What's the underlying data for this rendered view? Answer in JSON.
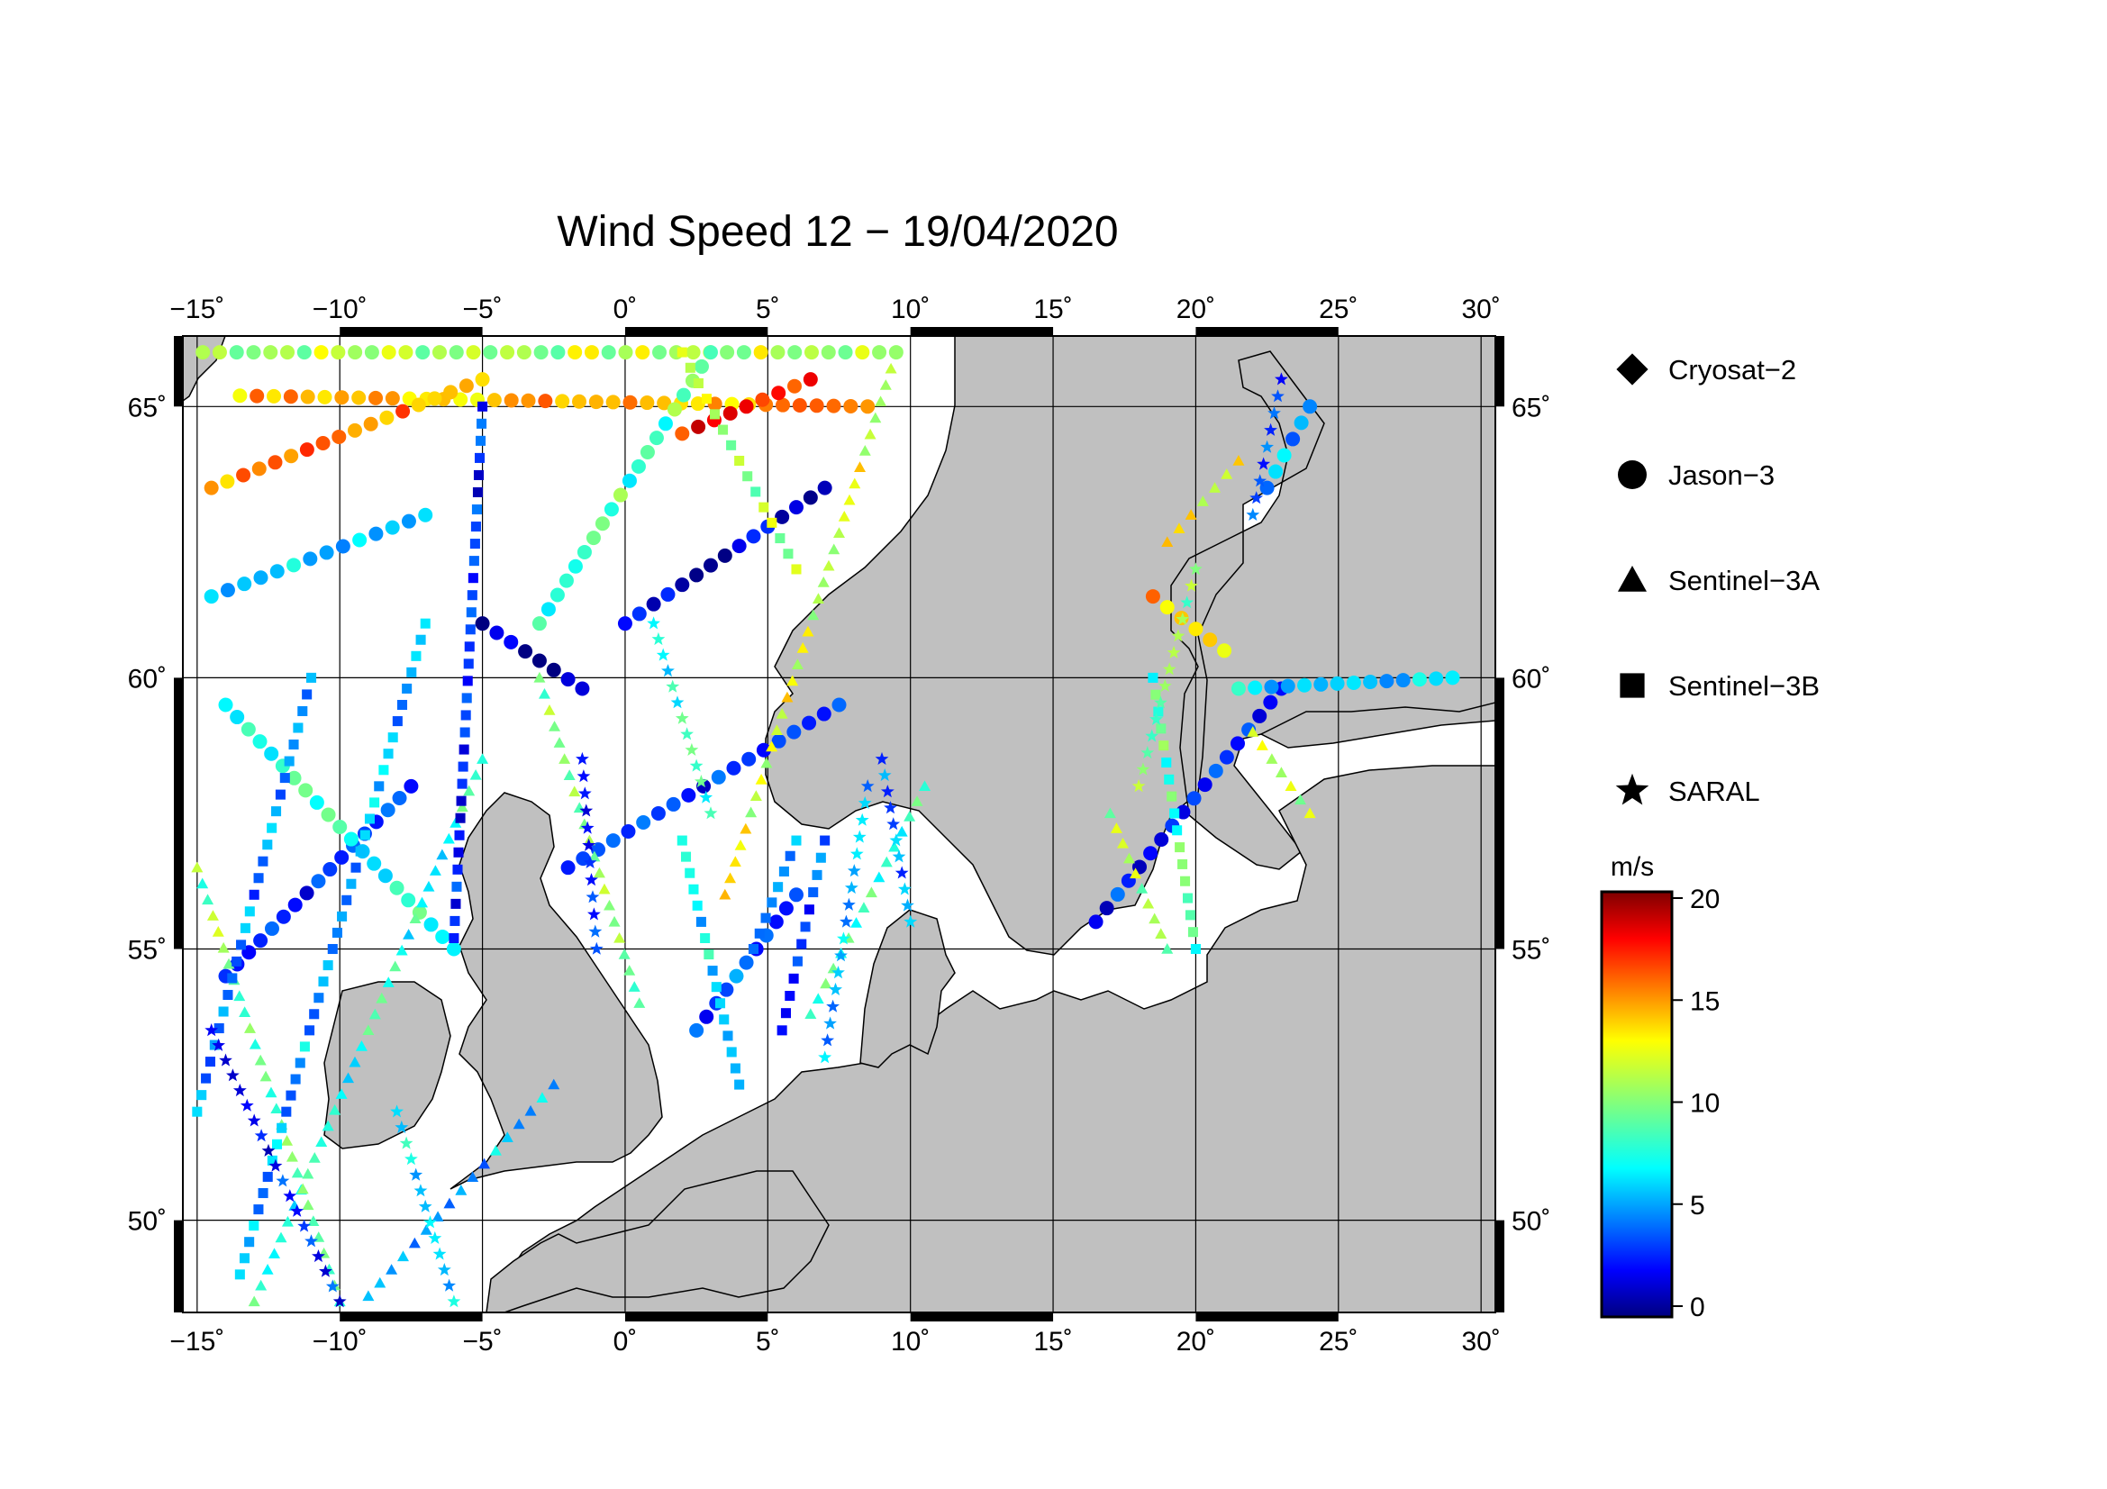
{
  "title": "Wind Speed 12 − 19/04/2020",
  "map": {
    "lon_range": [
      -15.5,
      30.5
    ],
    "lat_range": [
      48.3,
      66.3
    ],
    "lon_ticks": [
      "−15˚",
      "−10˚",
      "−5˚",
      "0˚",
      "5˚",
      "10˚",
      "15˚",
      "20˚",
      "25˚",
      "30˚"
    ],
    "lat_ticks": [
      "50˚",
      "55˚",
      "60˚",
      "65˚"
    ],
    "land_color": "#c0c0c0",
    "sea_color": "#ffffff"
  },
  "legend": {
    "items": [
      {
        "label": "Cryosat−2",
        "symbol": "diamond"
      },
      {
        "label": "Jason−3",
        "symbol": "circle"
      },
      {
        "label": "Sentinel−3A",
        "symbol": "triangle"
      },
      {
        "label": "Sentinel−3B",
        "symbol": "square"
      },
      {
        "label": "SARAL",
        "symbol": "star"
      }
    ]
  },
  "colorbar": {
    "unit": "m/s",
    "min": 0,
    "max": 20,
    "tick_labels": [
      "20",
      "15",
      "10",
      "5",
      "0"
    ],
    "colormap": "jet"
  },
  "tracks": [
    {
      "mission": "Jason−3",
      "lon0": -14.8,
      "lat0": 66.0,
      "lon1": 9.5,
      "lat1": 66.0,
      "speed": 11
    },
    {
      "mission": "Jason−3",
      "lon0": -13.5,
      "lat0": 65.2,
      "lon1": 8.5,
      "lat1": 65.0,
      "speed": 14
    },
    {
      "mission": "Jason−3",
      "lon0": -3.0,
      "lat0": 61.0,
      "lon1": 3.0,
      "lat1": 66.0,
      "speed": 9
    },
    {
      "mission": "Jason−3",
      "lon0": -5.0,
      "lat0": 61.0,
      "lon1": -1.5,
      "lat1": 59.8,
      "speed": 1
    },
    {
      "mission": "Jason−3",
      "lon0": 0.0,
      "lat0": 61.0,
      "lon1": 7.0,
      "lat1": 63.5,
      "speed": 2
    },
    {
      "mission": "Jason−3",
      "lon0": -14.5,
      "lat0": 61.5,
      "lon1": -7.0,
      "lat1": 63.0,
      "speed": 7
    },
    {
      "mission": "Jason−3",
      "lon0": -14.5,
      "lat0": 63.5,
      "lon1": -5.0,
      "lat1": 65.5,
      "speed": 15
    },
    {
      "mission": "Jason−3",
      "lon0": -14.0,
      "lat0": 54.5,
      "lon1": -7.5,
      "lat1": 58.0,
      "speed": 3
    },
    {
      "mission": "Jason−3",
      "lon0": -2.0,
      "lat0": 56.5,
      "lon1": 7.5,
      "lat1": 59.5,
      "speed": 3
    },
    {
      "mission": "Jason−3",
      "lon0": 2.5,
      "lat0": 53.5,
      "lon1": 6.0,
      "lat1": 56.0,
      "speed": 4
    },
    {
      "mission": "Jason−3",
      "lon0": 16.5,
      "lat0": 55.5,
      "lon1": 23.0,
      "lat1": 59.8,
      "speed": 3
    },
    {
      "mission": "Jason−3",
      "lon0": 21.5,
      "lat0": 59.8,
      "lon1": 29.0,
      "lat1": 60.0,
      "speed": 7
    },
    {
      "mission": "Jason−3",
      "lon0": 18.5,
      "lat0": 61.5,
      "lon1": 21.0,
      "lat1": 60.5,
      "speed": 14
    },
    {
      "mission": "Jason−3",
      "lon0": 22.5,
      "lat0": 63.5,
      "lon1": 24.0,
      "lat1": 65.0,
      "speed": 6
    },
    {
      "mission": "Jason−3",
      "lon0": -14.0,
      "lat0": 59.5,
      "lon1": -6.0,
      "lat1": 55.0,
      "speed": 8
    },
    {
      "mission": "Jason−3",
      "lon0": 2.0,
      "lat0": 64.5,
      "lon1": 6.5,
      "lat1": 65.5,
      "speed": 17
    },
    {
      "mission": "Sentinel−3A",
      "lon0": -13.0,
      "lat0": 48.5,
      "lon1": -5.0,
      "lat1": 58.5,
      "speed": 8
    },
    {
      "mission": "Sentinel−3A",
      "lon0": -10.0,
      "lat0": 48.5,
      "lon1": -15.0,
      "lat1": 56.5,
      "speed": 10
    },
    {
      "mission": "Sentinel−3A",
      "lon0": 3.5,
      "lat0": 56.0,
      "lon1": 9.5,
      "lat1": 66.0,
      "speed": 12
    },
    {
      "mission": "Sentinel−3A",
      "lon0": 0.5,
      "lat0": 54.0,
      "lon1": -3.0,
      "lat1": 60.0,
      "speed": 10
    },
    {
      "mission": "Sentinel−3A",
      "lon0": 6.5,
      "lat0": 53.8,
      "lon1": 10.5,
      "lat1": 58.0,
      "speed": 9
    },
    {
      "mission": "Sentinel−3A",
      "lon0": 19.0,
      "lat0": 55.0,
      "lon1": 17.0,
      "lat1": 57.5,
      "speed": 11
    },
    {
      "mission": "Sentinel−3A",
      "lon0": 19.0,
      "lat0": 62.5,
      "lon1": 21.5,
      "lat1": 64.0,
      "speed": 12
    },
    {
      "mission": "Sentinel−3A",
      "lon0": 22.0,
      "lat0": 59.0,
      "lon1": 24.0,
      "lat1": 57.5,
      "speed": 11
    },
    {
      "mission": "Sentinel−3A",
      "lon0": -9.0,
      "lat0": 48.6,
      "lon1": -2.5,
      "lat1": 52.5,
      "speed": 6
    },
    {
      "mission": "Sentinel−3B",
      "lon0": -13.5,
      "lat0": 49.0,
      "lon1": -7.0,
      "lat1": 61.0,
      "speed": 6
    },
    {
      "mission": "Sentinel−3B",
      "lon0": -15.0,
      "lat0": 52.0,
      "lon1": -11.0,
      "lat1": 60.0,
      "speed": 5
    },
    {
      "mission": "Sentinel−3B",
      "lon0": 2.0,
      "lat0": 57.0,
      "lon1": 4.0,
      "lat1": 52.5,
      "speed": 7
    },
    {
      "mission": "Sentinel−3B",
      "lon0": 4.5,
      "lat0": 55.0,
      "lon1": 6.0,
      "lat1": 57.0,
      "speed": 6
    },
    {
      "mission": "Sentinel−3B",
      "lon0": 5.5,
      "lat0": 53.5,
      "lon1": 7.0,
      "lat1": 57.0,
      "speed": 4
    },
    {
      "mission": "Sentinel−3B",
      "lon0": -6.0,
      "lat0": 55.2,
      "lon1": -5.0,
      "lat1": 65.0,
      "speed": 3
    },
    {
      "mission": "Sentinel−3B",
      "lon0": 18.5,
      "lat0": 60.0,
      "lon1": 20.0,
      "lat1": 55.0,
      "speed": 9
    },
    {
      "mission": "Sentinel−3B",
      "lon0": 6.0,
      "lat0": 62.0,
      "lon1": 2.0,
      "lat1": 66.0,
      "speed": 11
    },
    {
      "mission": "SARAL",
      "lon0": -14.5,
      "lat0": 53.5,
      "lon1": -10.0,
      "lat1": 48.5,
      "speed": 3
    },
    {
      "mission": "SARAL",
      "lon0": 7.0,
      "lat0": 53.0,
      "lon1": 8.5,
      "lat1": 58.0,
      "speed": 6
    },
    {
      "mission": "SARAL",
      "lon0": 3.0,
      "lat0": 57.5,
      "lon1": 1.0,
      "lat1": 61.0,
      "speed": 8
    },
    {
      "mission": "SARAL",
      "lon0": 18.0,
      "lat0": 58.0,
      "lon1": 20.0,
      "lat1": 62.0,
      "speed": 10
    },
    {
      "mission": "SARAL",
      "lon0": 22.0,
      "lat0": 63.0,
      "lon1": 23.0,
      "lat1": 65.5,
      "speed": 4
    },
    {
      "mission": "SARAL",
      "lon0": -1.0,
      "lat0": 55.0,
      "lon1": -1.5,
      "lat1": 58.5,
      "speed": 3
    },
    {
      "mission": "SARAL",
      "lon0": 10.0,
      "lat0": 55.5,
      "lon1": 9.0,
      "lat1": 58.5,
      "speed": 5
    },
    {
      "mission": "SARAL",
      "lon0": -8.0,
      "lat0": 52.0,
      "lon1": -6.0,
      "lat1": 48.5,
      "speed": 7
    }
  ]
}
